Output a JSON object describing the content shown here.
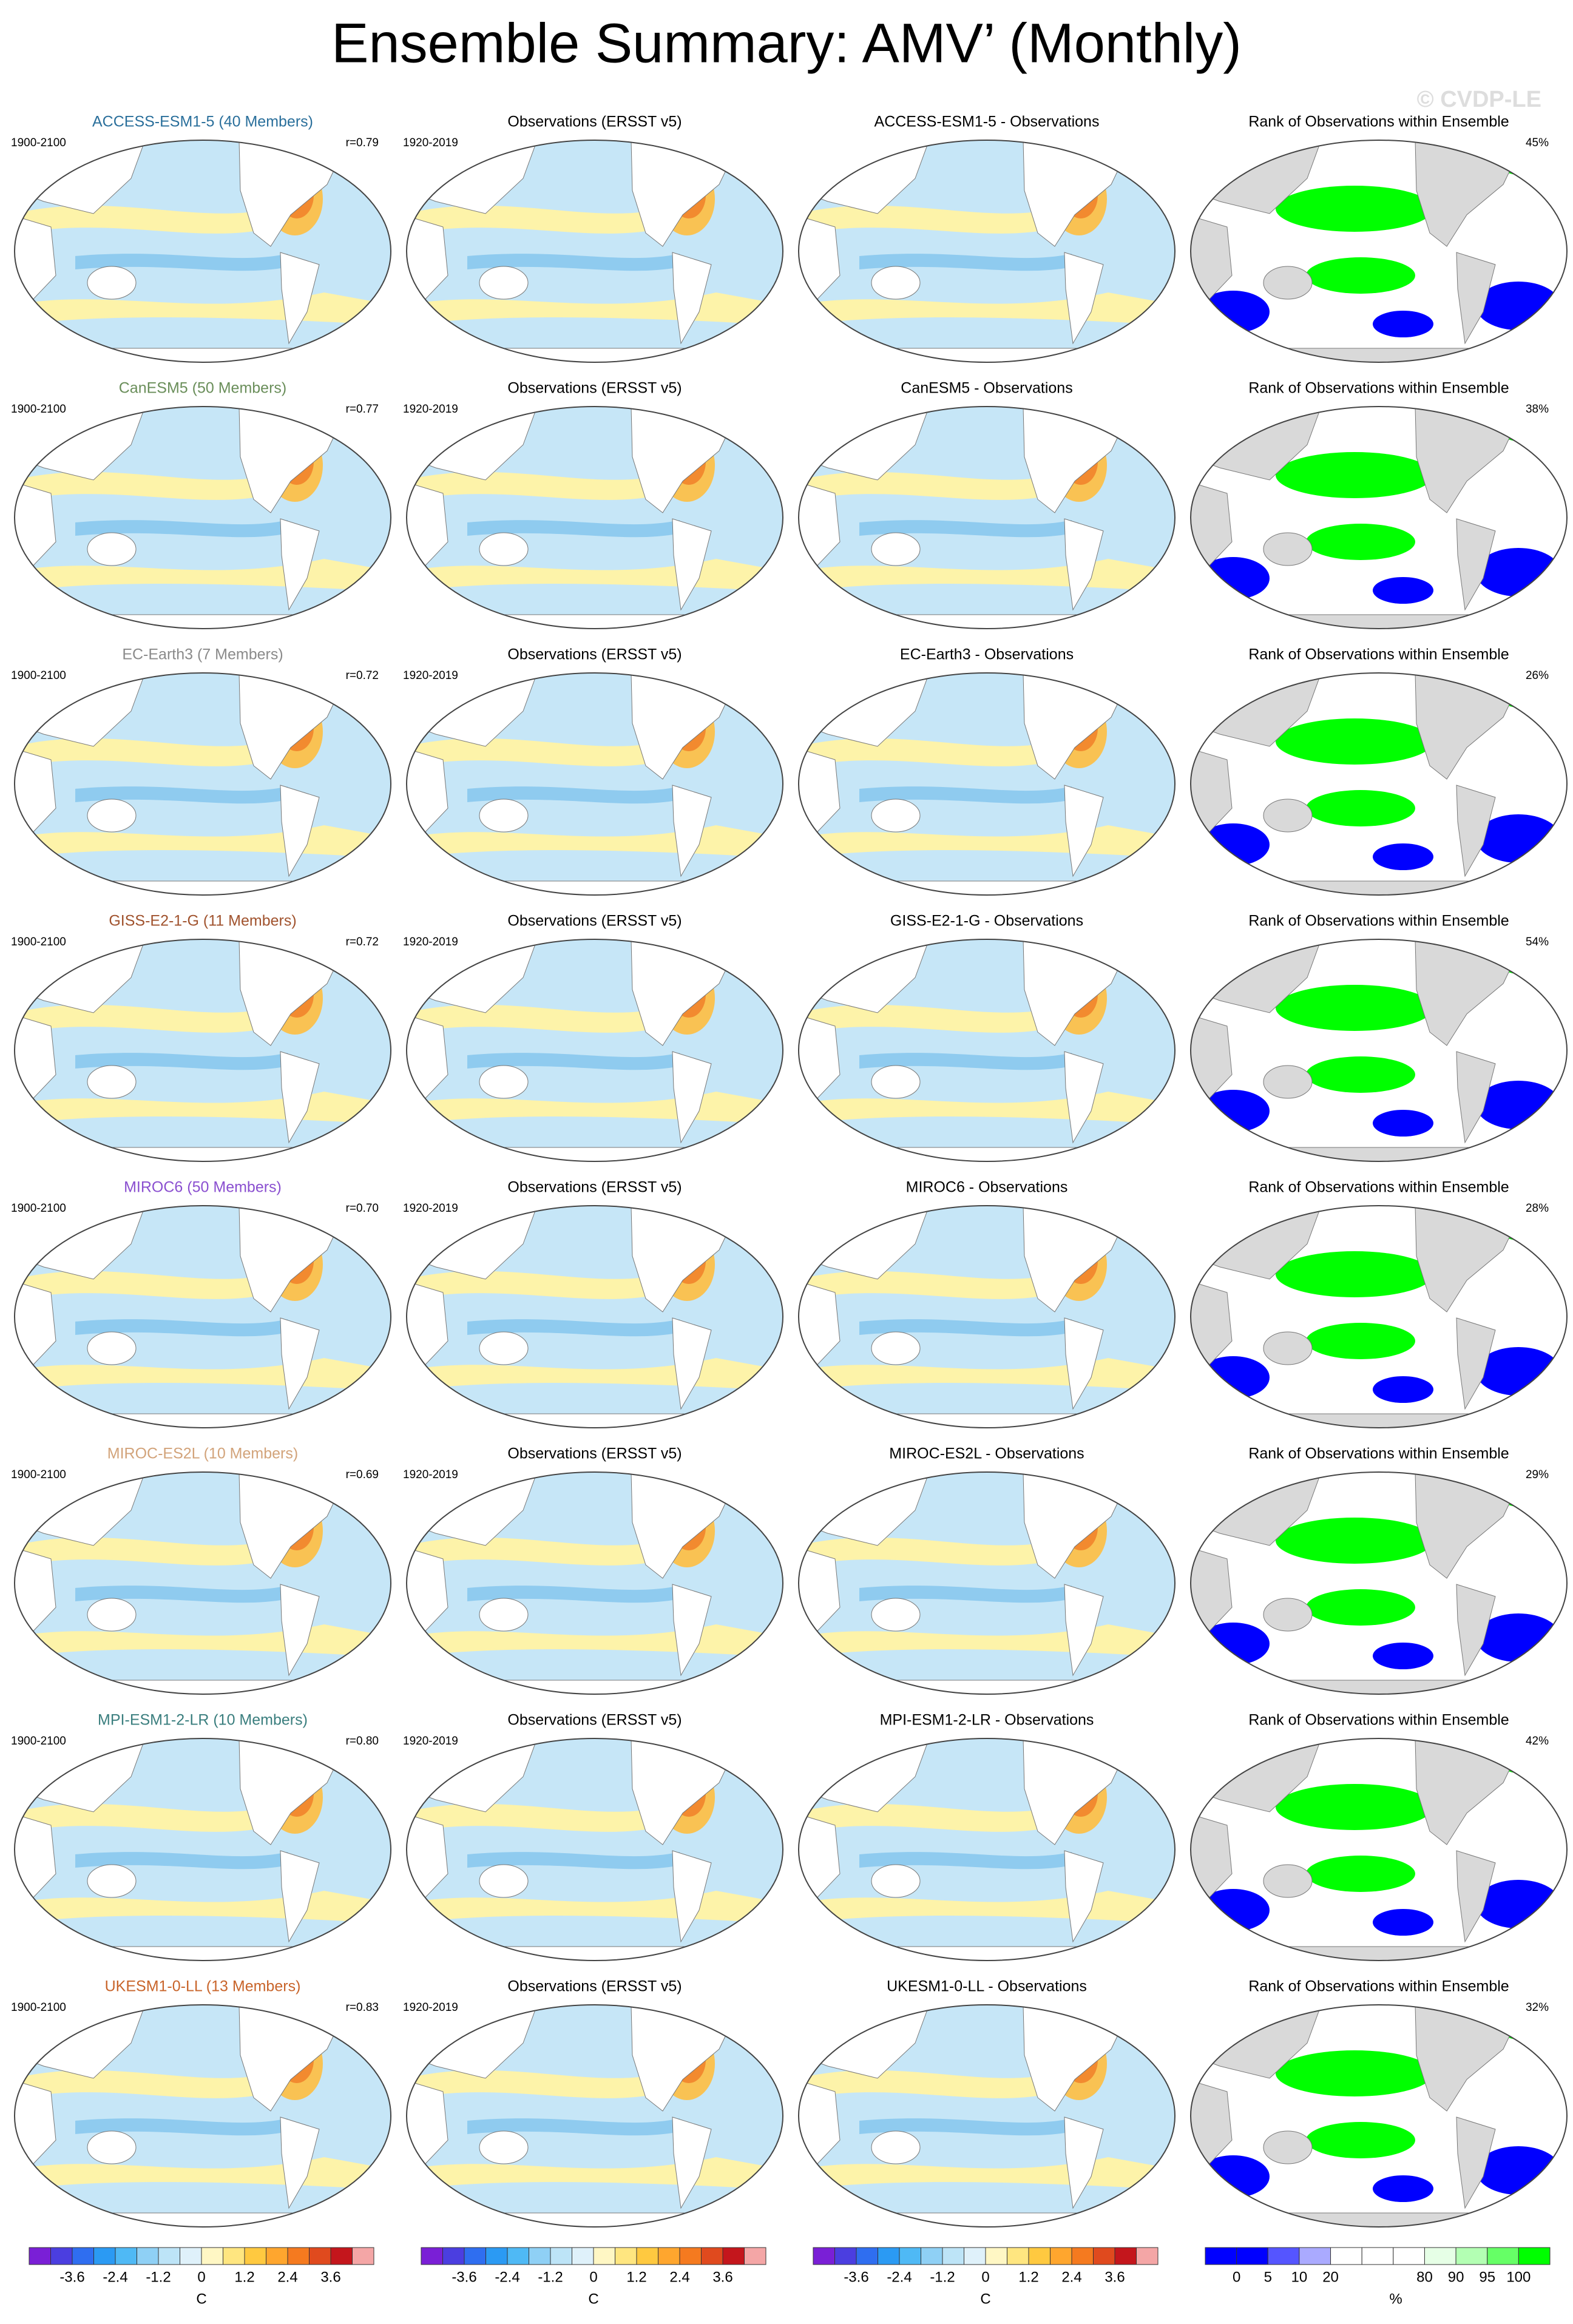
{
  "title": "Ensemble Summary: AMV’ (Monthly)",
  "watermark": "© CVDP-LE",
  "rows": [
    {
      "model": "ACCESS-ESM1-5 (40 Members)",
      "model_color": "#2a6f9b",
      "period": "1900-2100",
      "r": "r=0.79",
      "obs_title": "Observations (ERSST v5)",
      "obs_period": "1920-2019",
      "diff_title": "ACCESS-ESM1-5 - Observations",
      "rank_title": "Rank of Observations within Ensemble",
      "rank_pct": "45%"
    },
    {
      "model": "CanESM5 (50 Members)",
      "model_color": "#6a8e5a",
      "period": "1900-2100",
      "r": "r=0.77",
      "obs_title": "Observations (ERSST v5)",
      "obs_period": "1920-2019",
      "diff_title": "CanESM5 - Observations",
      "rank_title": "Rank of Observations within Ensemble",
      "rank_pct": "38%"
    },
    {
      "model": "EC-Earth3 (7 Members)",
      "model_color": "#8a8a8a",
      "period": "1900-2100",
      "r": "r=0.72",
      "obs_title": "Observations (ERSST v5)",
      "obs_period": "1920-2019",
      "diff_title": "EC-Earth3 - Observations",
      "rank_title": "Rank of Observations within Ensemble",
      "rank_pct": "26%"
    },
    {
      "model": "GISS-E2-1-G (11 Members)",
      "model_color": "#a0522d",
      "period": "1900-2100",
      "r": "r=0.72",
      "obs_title": "Observations (ERSST v5)",
      "obs_period": "1920-2019",
      "diff_title": "GISS-E2-1-G - Observations",
      "rank_title": "Rank of Observations within Ensemble",
      "rank_pct": "54%"
    },
    {
      "model": "MIROC6 (50 Members)",
      "model_color": "#8a4fd0",
      "period": "1900-2100",
      "r": "r=0.70",
      "obs_title": "Observations (ERSST v5)",
      "obs_period": "1920-2019",
      "diff_title": "MIROC6 - Observations",
      "rank_title": "Rank of Observations within Ensemble",
      "rank_pct": "28%"
    },
    {
      "model": "MIROC-ES2L (10 Members)",
      "model_color": "#d2a37a",
      "period": "1900-2100",
      "r": "r=0.69",
      "obs_title": "Observations (ERSST v5)",
      "obs_period": "1920-2019",
      "diff_title": "MIROC-ES2L - Observations",
      "rank_title": "Rank of Observations within Ensemble",
      "rank_pct": "29%"
    },
    {
      "model": "MPI-ESM1-2-LR (10 Members)",
      "model_color": "#3a7e7e",
      "period": "1900-2100",
      "r": "r=0.80",
      "obs_title": "Observations (ERSST v5)",
      "obs_period": "1920-2019",
      "diff_title": "MPI-ESM1-2-LR - Observations",
      "rank_title": "Rank of Observations within Ensemble",
      "rank_pct": "42%"
    },
    {
      "model": "UKESM1-0-LL (13 Members)",
      "model_color": "#c8642a",
      "period": "1900-2100",
      "r": "r=0.83",
      "obs_title": "Observations (ERSST v5)",
      "obs_period": "1920-2019",
      "diff_title": "UKESM1-0-LL - Observations",
      "rank_title": "Rank of Observations within Ensemble",
      "rank_pct": "32%"
    }
  ],
  "colorbars": [
    {
      "colors": [
        "#7a1fd6",
        "#4b3ee0",
        "#2f6ef0",
        "#2b9af3",
        "#4fb9f5",
        "#8fd0f5",
        "#bde4f7",
        "#dff1fa",
        "#fff7c4",
        "#ffe680",
        "#ffc940",
        "#ffa62e",
        "#f57a1f",
        "#e04a1e",
        "#c4161c",
        "#f4a6a6"
      ],
      "labels": [
        "-3.6",
        "-2.4",
        "-1.2",
        "0",
        "1.2",
        "2.4",
        "3.6"
      ],
      "unit": "C"
    },
    {
      "colors": [
        "#7a1fd6",
        "#4b3ee0",
        "#2f6ef0",
        "#2b9af3",
        "#4fb9f5",
        "#8fd0f5",
        "#bde4f7",
        "#dff1fa",
        "#fff7c4",
        "#ffe680",
        "#ffc940",
        "#ffa62e",
        "#f57a1f",
        "#e04a1e",
        "#c4161c",
        "#f4a6a6"
      ],
      "labels": [
        "-3.6",
        "-2.4",
        "-1.2",
        "0",
        "1.2",
        "2.4",
        "3.6"
      ],
      "unit": "C"
    },
    {
      "colors": [
        "#7a1fd6",
        "#4b3ee0",
        "#2f6ef0",
        "#2b9af3",
        "#4fb9f5",
        "#8fd0f5",
        "#bde4f7",
        "#dff1fa",
        "#fff7c4",
        "#ffe680",
        "#ffc940",
        "#ffa62e",
        "#f57a1f",
        "#e04a1e",
        "#c4161c",
        "#f4a6a6"
      ],
      "labels": [
        "-3.6",
        "-2.4",
        "-1.2",
        "0",
        "1.2",
        "2.4",
        "3.6"
      ],
      "unit": "C"
    },
    {
      "colors": [
        "#0000ff",
        "#0000ff",
        "#5555ff",
        "#aaaaff",
        "#ffffff",
        "#ffffff",
        "#ffffff",
        "#e6ffe6",
        "#b3ffb3",
        "#66ff66",
        "#00ff00"
      ],
      "labels": [
        "0",
        "5",
        "10",
        "20",
        "80",
        "90",
        "95",
        "100"
      ],
      "unit": "%"
    }
  ]
}
